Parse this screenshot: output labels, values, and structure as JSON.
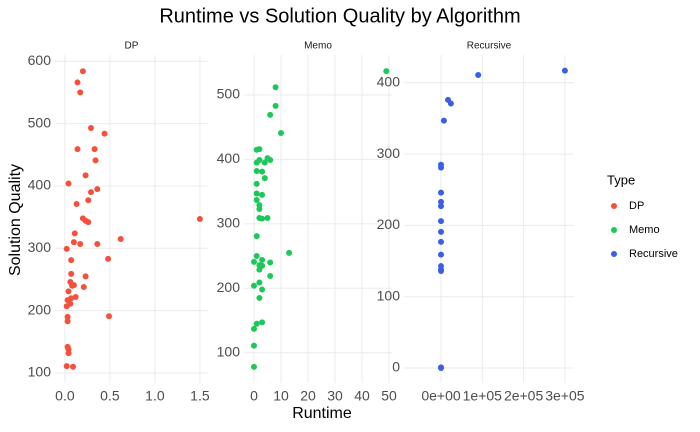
{
  "title": "Runtime vs Solution Quality by Algorithm",
  "x_label": "Runtime",
  "y_label": "Solution Quality",
  "legend_title": "Type",
  "chart_data": [
    {
      "type": "scatter",
      "title": "DP",
      "grid": true,
      "series": [
        {
          "name": "DP",
          "color": "#F4503C",
          "x": [
            0.2,
            0.14,
            0.17,
            0.29,
            0.44,
            0.14,
            0.33,
            0.34,
            0.23,
            0.04,
            0.36,
            0.29,
            0.26,
            0.13,
            0.2,
            0.23,
            0.26,
            1.5,
            0.62,
            0.11,
            0.1,
            0.36,
            0.17,
            0.02,
            0.48,
            0.07,
            0.23,
            0.07,
            0.06,
            0.1,
            0.21,
            0.08,
            0.04,
            0.12,
            0.03,
            0.06,
            0.07,
            0.02,
            0.03,
            0.03,
            0.49,
            0.03,
            0.04,
            0.04,
            0.02,
            0.09
          ],
          "values": [
            584,
            566,
            550,
            493,
            484,
            459,
            459,
            441,
            417,
            404,
            395,
            390,
            377,
            371,
            348,
            344,
            342,
            347,
            315,
            324,
            310,
            307,
            307,
            299,
            283,
            281,
            255,
            259,
            246,
            241,
            238,
            240,
            231,
            222,
            217,
            211,
            220,
            207,
            190,
            183,
            191,
            142,
            138,
            132,
            111,
            110
          ]
        }
      ],
      "xlim": [
        -0.11,
        1.59
      ],
      "xticks": [
        {
          "value": 0,
          "label": "0.0"
        },
        0.5,
        {
          "value": 1,
          "label": "1.0"
        },
        1.5
      ],
      "ylim": [
        84,
        610
      ],
      "yticks": [
        100,
        200,
        300,
        400,
        500,
        600
      ]
    },
    {
      "type": "scatter",
      "title": "Memo",
      "grid": true,
      "series": [
        {
          "name": "Memo",
          "color": "#1DC85A",
          "x": [
            8,
            49,
            8,
            6,
            10,
            2,
            1,
            5,
            6,
            2,
            4,
            1,
            1,
            3,
            4,
            1,
            1,
            3,
            1,
            2,
            2,
            5,
            2,
            3,
            1,
            1,
            13,
            3,
            6,
            2,
            0,
            3,
            2,
            6,
            2,
            0,
            3,
            2,
            3,
            1,
            0,
            0,
            0
          ],
          "values": [
            512,
            537,
            483,
            469,
            441,
            416,
            415,
            402,
            399,
            399,
            395,
            395,
            382,
            381,
            371,
            362,
            347,
            345,
            337,
            329,
            323,
            309,
            309,
            308,
            281,
            250,
            255,
            244,
            240,
            236,
            241,
            235,
            229,
            219,
            209,
            204,
            198,
            185,
            147,
            145,
            137,
            111,
            78
          ]
        }
      ],
      "xlim": [
        -3.7,
        51.1
      ],
      "xticks": [
        0,
        10,
        20,
        30,
        40,
        50
      ],
      "ylim": [
        53,
        562
      ],
      "yticks": [
        100,
        200,
        300,
        400,
        500
      ]
    },
    {
      "type": "scatter",
      "title": "Recursive",
      "grid": true,
      "series": [
        {
          "name": "Recursive",
          "color": "#3A5FE5",
          "x": [
            300000,
            90000,
            17000,
            24000,
            7000,
            0,
            0,
            0,
            0,
            0,
            0,
            0,
            0,
            0,
            0,
            0,
            0,
            0,
            0
          ],
          "values": [
            417,
            411,
            376,
            371,
            347,
            285,
            281,
            246,
            233,
            227,
            206,
            191,
            177,
            159,
            143,
            136,
            1,
            0,
            138
          ]
        }
      ],
      "xlim": [
        -89600,
        322000
      ],
      "xticks": [
        {
          "value": 0,
          "label": "0e+00"
        },
        {
          "value": 100000,
          "label": "1e+05"
        },
        {
          "value": 200000,
          "label": "2e+05"
        },
        {
          "value": 300000,
          "label": "3e+05"
        }
      ],
      "ylim": [
        -21,
        439
      ],
      "yticks": [
        0,
        100,
        200,
        300,
        400
      ]
    }
  ]
}
